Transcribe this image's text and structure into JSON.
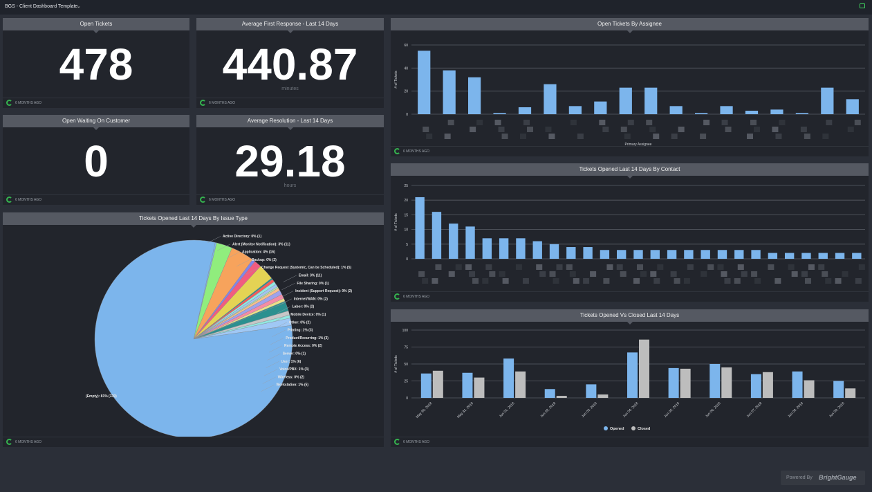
{
  "app": {
    "title": "BGS - Client Dashboard Template"
  },
  "cards": {
    "open_tickets": {
      "title": "Open Tickets",
      "value": "478",
      "ago": "6 MONTHS AGO"
    },
    "avg_first_response": {
      "title": "Average First Response - Last 14 Days",
      "value": "440.87",
      "unit": "minutes",
      "ago": "6 MONTHS AGO"
    },
    "open_waiting": {
      "title": "Open Waiting On Customer",
      "value": "0",
      "ago": "6 MONTHS AGO"
    },
    "avg_resolution": {
      "title": "Average Resolution - Last 14 Days",
      "value": "29.18",
      "unit": "hours",
      "ago": "6 MONTHS AGO"
    },
    "issue_type": {
      "title": "Tickets Opened Last 14 Days By Issue Type",
      "ago": "6 MONTHS AGO"
    },
    "by_assignee": {
      "title": "Open Tickets By Assignee",
      "ago": "6 MONTHS AGO"
    },
    "by_contact": {
      "title": "Tickets Opened Last 14 Days By Contact",
      "ago": "6 MONTHS AGO"
    },
    "opened_closed": {
      "title": "Tickets Opened Vs Closed Last 14 Days",
      "ago": "6 MONTHS AGO"
    }
  },
  "footer": {
    "powered_by": "Powered By",
    "brand": "BrightGauge"
  },
  "colors": {
    "accent": "#7cb5ec",
    "closed": "#bdbdbd",
    "card": "#22252c",
    "header": "#555962",
    "refresh": "#35b34f"
  },
  "chart_data": [
    {
      "id": "assignee",
      "type": "bar",
      "title": "Open Tickets By Assignee",
      "xlabel": "Primary Assignee",
      "ylabel": "# of Tickets",
      "ylim": [
        0,
        60
      ],
      "yticks": [
        0,
        20,
        40,
        60
      ],
      "grid": true,
      "values": [
        55,
        38,
        32,
        1,
        6,
        26,
        7,
        11,
        23,
        23,
        7,
        1,
        7,
        3,
        4,
        1,
        23,
        13
      ]
    },
    {
      "id": "contact",
      "type": "bar",
      "title": "Tickets Opened Last 14 Days By Contact",
      "ylabel": "# of Tickets",
      "ylim": [
        0,
        25
      ],
      "yticks": [
        0,
        5,
        10,
        15,
        20,
        25
      ],
      "grid": true,
      "values": [
        21,
        16,
        12,
        11,
        7,
        7,
        7,
        6,
        5,
        4,
        4,
        3,
        3,
        3,
        3,
        3,
        3,
        3,
        3,
        3,
        3,
        2,
        2,
        2,
        2,
        2,
        2
      ]
    },
    {
      "id": "opened_closed",
      "type": "bar",
      "title": "Tickets Opened Vs Closed Last 14 Days",
      "ylabel": "# of Tickets",
      "ylim": [
        0,
        100
      ],
      "yticks": [
        0,
        25,
        50,
        75,
        100
      ],
      "grid": true,
      "legend": "bottom",
      "categories": [
        "May 30, 2018",
        "May 31, 2018",
        "Jun 01, 2018",
        "Jun 02, 2018",
        "Jun 03, 2018",
        "Jun 04, 2018",
        "Jun 05, 2018",
        "Jun 06, 2018",
        "Jun 07, 2018",
        "Jun 08, 2018",
        "Jun 09, 2018"
      ],
      "series": [
        {
          "name": "Opened",
          "color": "#7cb5ec",
          "values": [
            36,
            37,
            58,
            13,
            20,
            67,
            44,
            50,
            35,
            39,
            25
          ]
        },
        {
          "name": "Closed",
          "color": "#bdbdbd",
          "values": [
            40,
            30,
            39,
            3,
            5,
            86,
            43,
            45,
            38,
            26,
            14
          ]
        }
      ]
    },
    {
      "id": "issue_type",
      "type": "pie",
      "title": "Tickets Opened Last 14 Days By Issue Type",
      "slices": [
        {
          "label": "Active Directory: 0% (1)",
          "value": 1,
          "color": "#7cb5ec"
        },
        {
          "label": "Alert (Monitor Notification): 3% (11)",
          "value": 11,
          "color": "#90ed7d"
        },
        {
          "label": "Application: 4% (16)",
          "value": 16,
          "color": "#f7a35c"
        },
        {
          "label": "Backup: 0% (2)",
          "value": 2,
          "color": "#8085e9"
        },
        {
          "label": "Change Request (Systemic, Can be Scheduled): 1% (5)",
          "value": 5,
          "color": "#f15c80"
        },
        {
          "label": "Email: 3% (11)",
          "value": 11,
          "color": "#e4d354"
        },
        {
          "label": "File Sharing: 0% (1)",
          "value": 1,
          "color": "#2b908f"
        },
        {
          "label": "Incident (Support Request): 0% (2)",
          "value": 2,
          "color": "#f45b5b"
        },
        {
          "label": "Internet/WAN: 0% (2)",
          "value": 2,
          "color": "#91e8e1"
        },
        {
          "label": "Labor: 0% (2)",
          "value": 2,
          "color": "#a2c4f0"
        },
        {
          "label": "Mobile Device: 0% (1)",
          "value": 1,
          "color": "#b5e8a8"
        },
        {
          "label": "Other: 0% (2)",
          "value": 2,
          "color": "#f7c08c"
        },
        {
          "label": "Printing: 1% (3)",
          "value": 3,
          "color": "#9fa2ec"
        },
        {
          "label": "Product/Recurring: 1% (3)",
          "value": 3,
          "color": "#f58ca5"
        },
        {
          "label": "Remote Access: 0% (2)",
          "value": 2,
          "color": "#ecdf88"
        },
        {
          "label": "Server: 0% (1)",
          "value": 1,
          "color": "#2b908f"
        },
        {
          "label": "User: 1% (6)",
          "value": 6,
          "color": "#2b908f"
        },
        {
          "label": "Voice/PBX: 1% (3)",
          "value": 3,
          "color": "#c7c7c7"
        },
        {
          "label": "Wireless: 0% (2)",
          "value": 2,
          "color": "#91e8e1"
        },
        {
          "label": "Workstation: 1% (5)",
          "value": 5,
          "color": "#a0c8f5"
        },
        {
          "label": "(Empty): 81% (339)",
          "value": 339,
          "color": "#7cb5ec"
        }
      ]
    }
  ]
}
